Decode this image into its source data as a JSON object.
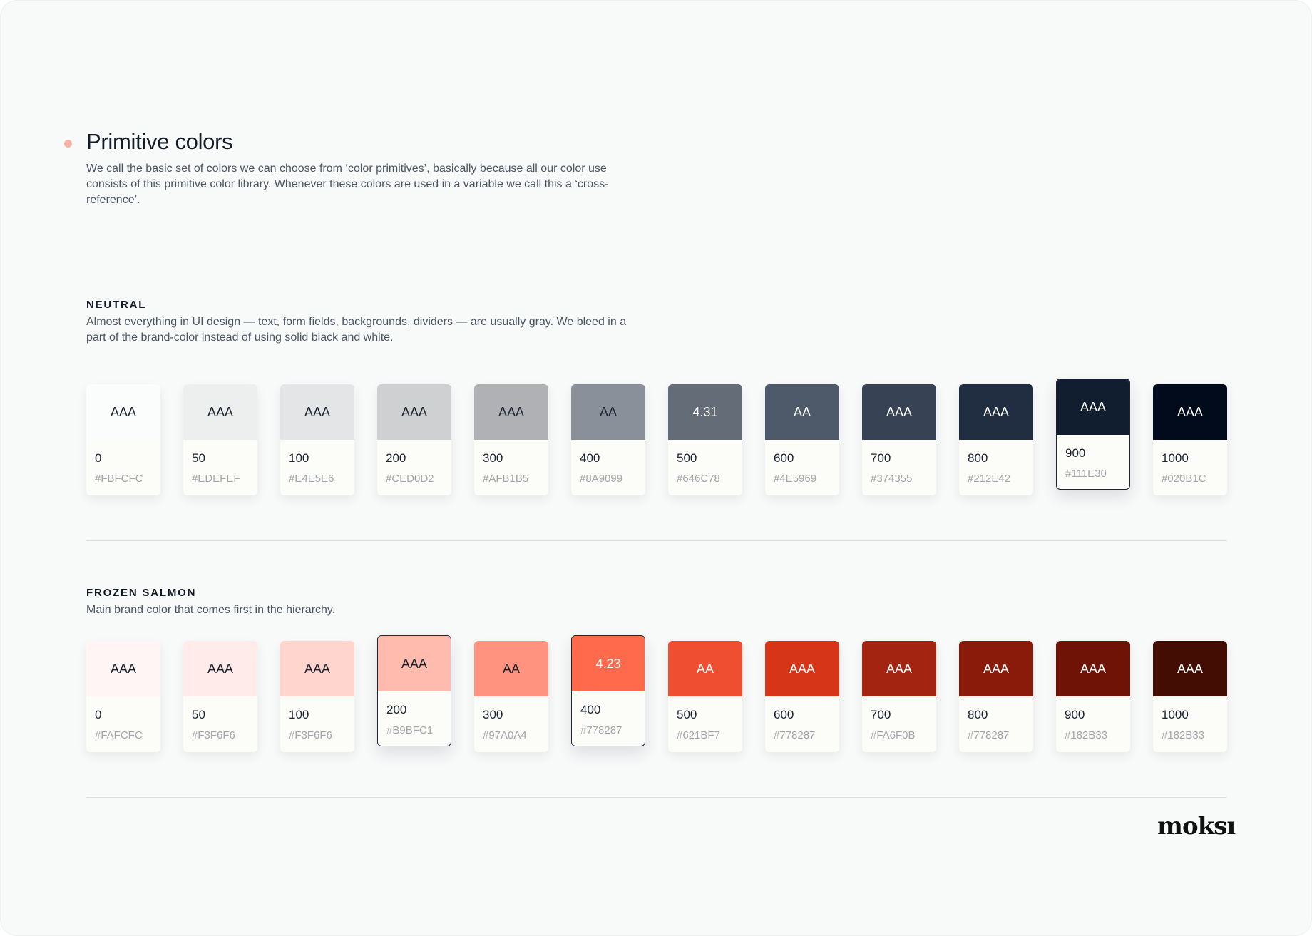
{
  "header": {
    "title": "Primitive colors",
    "description": "We call the basic set of colors we can choose from ‘color primitives’, basically because all our color use consists of this primitive color library. Whenever these colors are used in a variable we call this a ‘cross-reference’.",
    "bullet_color": "#F8B3A5"
  },
  "sections": [
    {
      "name": "NEUTRAL",
      "description": "Almost everything in UI design — text, form fields, backgrounds, dividers — are usually gray. We bleed in a part of the brand-color instead of using solid black and white.",
      "swatches": [
        {
          "rating": "AAA",
          "step": "0",
          "hex": "#FBFCFC",
          "color": "#FBFCFC",
          "text": "#1c2431"
        },
        {
          "rating": "AAA",
          "step": "50",
          "hex": "#EDEFEF",
          "color": "#EDEFEF",
          "text": "#1c2431"
        },
        {
          "rating": "AAA",
          "step": "100",
          "hex": "#E4E5E6",
          "color": "#E4E5E6",
          "text": "#1c2431"
        },
        {
          "rating": "AAA",
          "step": "200",
          "hex": "#CED0D2",
          "color": "#CED0D2",
          "text": "#1c2431"
        },
        {
          "rating": "AAA",
          "step": "300",
          "hex": "#AFB1B5",
          "color": "#AFB1B5",
          "text": "#1c2431"
        },
        {
          "rating": "AA",
          "step": "400",
          "hex": "#8A9099",
          "color": "#8A9099",
          "text": "#1c2431"
        },
        {
          "rating": "4.31",
          "step": "500",
          "hex": "#646C78",
          "color": "#646C78",
          "text": "#ffffff"
        },
        {
          "rating": "AA",
          "step": "600",
          "hex": "#4E5969",
          "color": "#4E5969",
          "text": "#ffffff"
        },
        {
          "rating": "AAA",
          "step": "700",
          "hex": "#374355",
          "color": "#374355",
          "text": "#ffffff"
        },
        {
          "rating": "AAA",
          "step": "800",
          "hex": "#212E42",
          "color": "#212E42",
          "text": "#ffffff"
        },
        {
          "rating": "AAA",
          "step": "900",
          "hex": "#111E30",
          "color": "#111E30",
          "text": "#ffffff",
          "selected": true
        },
        {
          "rating": "AAA",
          "step": "1000",
          "hex": "#020B1C",
          "color": "#020B1C",
          "text": "#ffffff"
        }
      ]
    },
    {
      "name": "FROZEN SALMON",
      "description": "Main brand color that comes first in the hierarchy.",
      "swatches": [
        {
          "rating": "AAA",
          "step": "0",
          "hex": "#FAFCFC",
          "color": "#FFF5F4",
          "text": "#1c2431"
        },
        {
          "rating": "AAA",
          "step": "50",
          "hex": "#F3F6F6",
          "color": "#FFEBE9",
          "text": "#1c2431"
        },
        {
          "rating": "AAA",
          "step": "100",
          "hex": "#F3F6F6",
          "color": "#FFD5CD",
          "text": "#1c2431"
        },
        {
          "rating": "AAA",
          "step": "200",
          "hex": "#B9BFC1",
          "color": "#FFBBAE",
          "text": "#1c2431",
          "selected": true
        },
        {
          "rating": "AA",
          "step": "300",
          "hex": "#97A0A4",
          "color": "#FF937F",
          "text": "#1c2431"
        },
        {
          "rating": "4.23",
          "step": "400",
          "hex": "#778287",
          "color": "#FF6A4D",
          "text": "#ffffff",
          "selected": true
        },
        {
          "rating": "AA",
          "step": "500",
          "hex": "#621BF7",
          "color": "#F04E30",
          "text": "#ffffff"
        },
        {
          "rating": "AAA",
          "step": "600",
          "hex": "#778287",
          "color": "#D63517",
          "text": "#ffffff"
        },
        {
          "rating": "AAA",
          "step": "700",
          "hex": "#FA6F0B",
          "color": "#A32511",
          "text": "#ffffff"
        },
        {
          "rating": "AAA",
          "step": "800",
          "hex": "#778287",
          "color": "#8A1B0A",
          "text": "#ffffff"
        },
        {
          "rating": "AAA",
          "step": "900",
          "hex": "#182B33",
          "color": "#6E1306",
          "text": "#ffffff"
        },
        {
          "rating": "AAA",
          "step": "1000",
          "hex": "#182B33",
          "color": "#440D04",
          "text": "#ffffff"
        }
      ]
    }
  ],
  "logo": "moksı"
}
